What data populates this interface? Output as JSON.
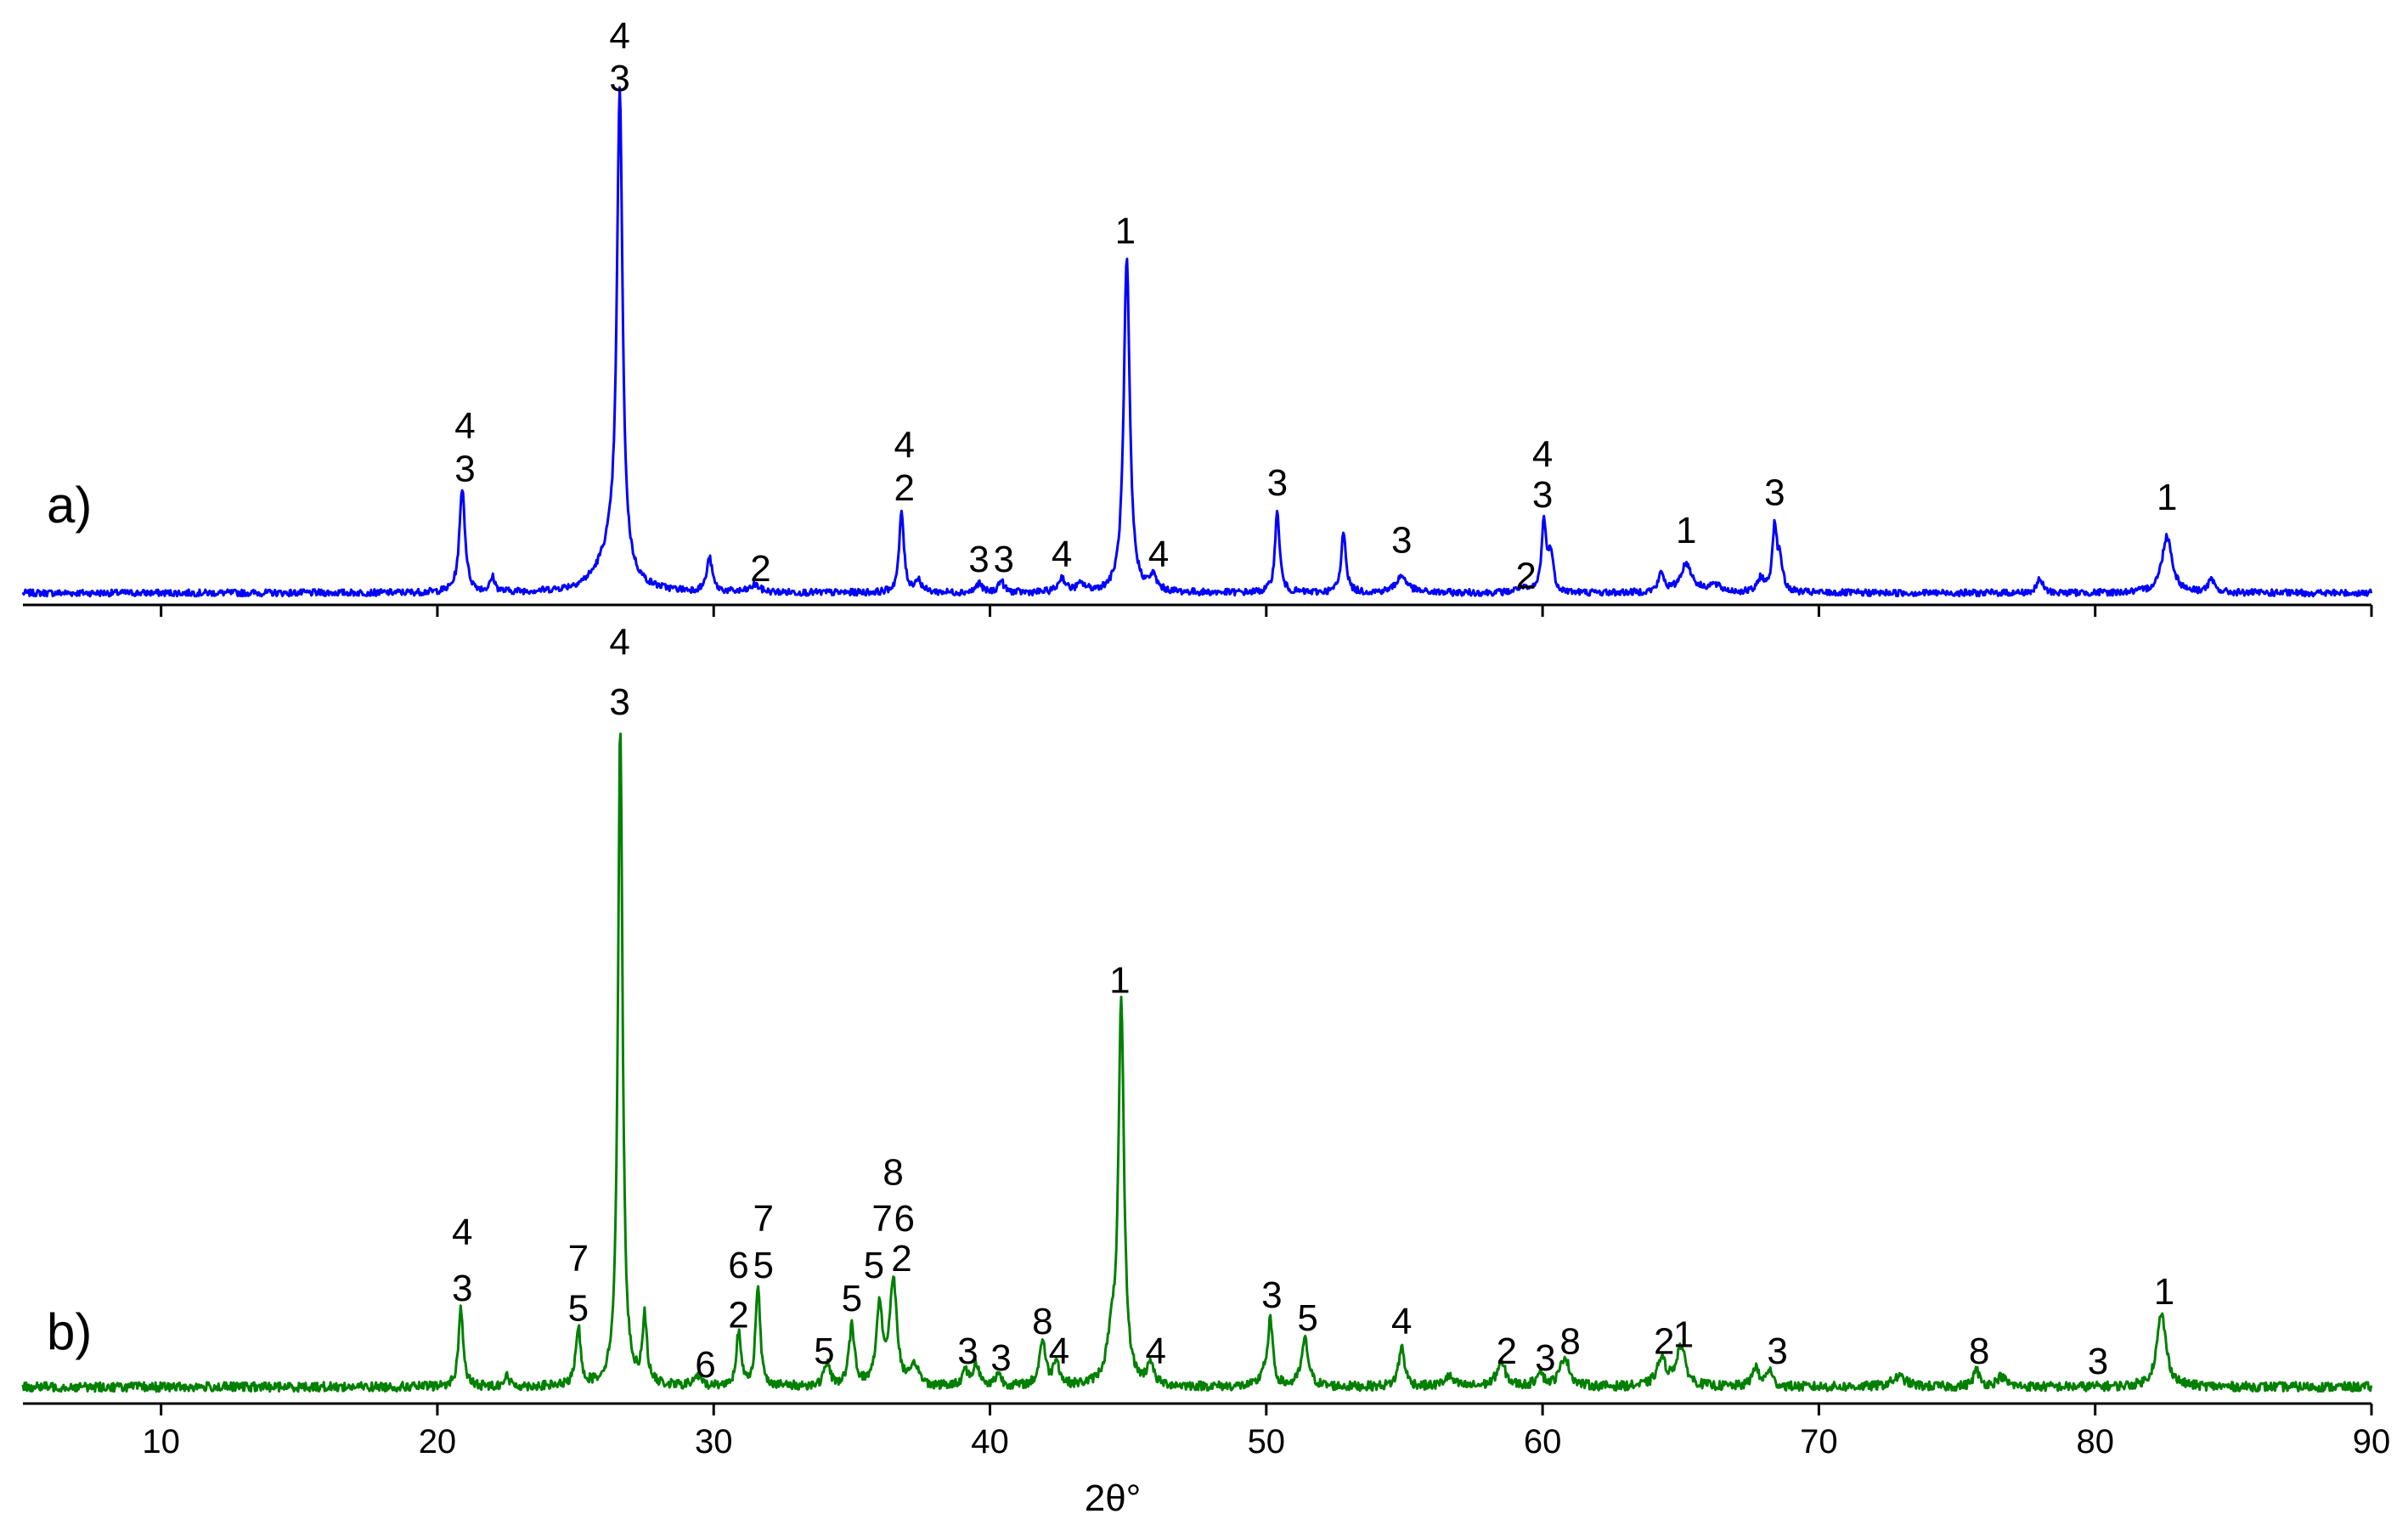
{
  "chart_data": {
    "type": "line",
    "xlabel": "2θ°",
    "xlim": [
      5,
      90
    ],
    "xticks": [
      10,
      20,
      30,
      40,
      50,
      60,
      70,
      80,
      90
    ],
    "grid": false,
    "panels": [
      {
        "label": "a)",
        "color": "#0000ff",
        "baseline": 2.5,
        "peaks": [
          {
            "x": 20.9,
            "h": 22,
            "w": 0.12
          },
          {
            "x": 22.0,
            "h": 3,
            "w": 0.1
          },
          {
            "x": 26.6,
            "h": 100,
            "w": 0.12
          },
          {
            "x": 26.3,
            "h": 8,
            "w": 0.6
          },
          {
            "x": 29.85,
            "h": 7,
            "w": 0.12
          },
          {
            "x": 31.5,
            "h": 1.5,
            "w": 0.2
          },
          {
            "x": 36.8,
            "h": 17,
            "w": 0.1
          },
          {
            "x": 37.4,
            "h": 2.5,
            "w": 0.15
          },
          {
            "x": 39.6,
            "h": 2,
            "w": 0.12
          },
          {
            "x": 40.4,
            "h": 2.5,
            "w": 0.12
          },
          {
            "x": 42.6,
            "h": 3,
            "w": 0.15
          },
          {
            "x": 43.3,
            "h": 1.5,
            "w": 0.2
          },
          {
            "x": 44.95,
            "h": 70,
            "w": 0.13
          },
          {
            "x": 45.9,
            "h": 3,
            "w": 0.15
          },
          {
            "x": 50.4,
            "h": 17,
            "w": 0.1
          },
          {
            "x": 52.8,
            "h": 13,
            "w": 0.1
          },
          {
            "x": 54.9,
            "h": 3.5,
            "w": 0.25
          },
          {
            "x": 59.2,
            "h": 1,
            "w": 0.2
          },
          {
            "x": 60.05,
            "h": 15,
            "w": 0.1
          },
          {
            "x": 60.3,
            "h": 8,
            "w": 0.1
          },
          {
            "x": 64.3,
            "h": 4,
            "w": 0.12
          },
          {
            "x": 65.2,
            "h": 6,
            "w": 0.25
          },
          {
            "x": 66.2,
            "h": 1.5,
            "w": 0.3
          },
          {
            "x": 67.9,
            "h": 3,
            "w": 0.12
          },
          {
            "x": 68.4,
            "h": 14,
            "w": 0.1
          },
          {
            "x": 68.6,
            "h": 6,
            "w": 0.1
          },
          {
            "x": 78.0,
            "h": 3,
            "w": 0.12
          },
          {
            "x": 82.6,
            "h": 12,
            "w": 0.22
          },
          {
            "x": 84.2,
            "h": 2.5,
            "w": 0.15
          }
        ],
        "annotations": [
          {
            "x": 21.0,
            "y": 35,
            "text": "4"
          },
          {
            "x": 21.0,
            "y": 26,
            "text": "3"
          },
          {
            "x": 26.6,
            "y": 117,
            "text": "4"
          },
          {
            "x": 26.6,
            "y": 108,
            "text": "3"
          },
          {
            "x": 31.7,
            "y": 5,
            "text": "2"
          },
          {
            "x": 36.9,
            "y": 31,
            "text": "4"
          },
          {
            "x": 36.9,
            "y": 22,
            "text": "2"
          },
          {
            "x": 39.6,
            "y": 7,
            "text": "3"
          },
          {
            "x": 40.5,
            "y": 7,
            "text": "3"
          },
          {
            "x": 42.6,
            "y": 8,
            "text": "4"
          },
          {
            "x": 46.1,
            "y": 8,
            "text": "4"
          },
          {
            "x": 44.9,
            "y": 76,
            "text": "1"
          },
          {
            "x": 50.4,
            "y": 23,
            "text": "3"
          },
          {
            "x": 54.9,
            "y": 11,
            "text": "3"
          },
          {
            "x": 59.4,
            "y": 3.5,
            "text": "2"
          },
          {
            "x": 60.0,
            "y": 29,
            "text": "4"
          },
          {
            "x": 60.0,
            "y": 20.5,
            "text": "3"
          },
          {
            "x": 65.2,
            "y": 13,
            "text": "1"
          },
          {
            "x": 68.4,
            "y": 21,
            "text": "3"
          },
          {
            "x": 82.6,
            "y": 20,
            "text": "1"
          }
        ]
      },
      {
        "label": "b)",
        "color": "#008000",
        "baseline": 2.5,
        "peaks": [
          {
            "x": 20.85,
            "h": 12,
            "w": 0.1
          },
          {
            "x": 22.5,
            "h": 1.5,
            "w": 0.12
          },
          {
            "x": 25.1,
            "h": 9,
            "w": 0.1
          },
          {
            "x": 26.62,
            "h": 100,
            "w": 0.1
          },
          {
            "x": 27.5,
            "h": 10,
            "w": 0.1
          },
          {
            "x": 29.4,
            "h": 1.5,
            "w": 0.15
          },
          {
            "x": 30.9,
            "h": 8,
            "w": 0.1
          },
          {
            "x": 31.6,
            "h": 15,
            "w": 0.1
          },
          {
            "x": 34.1,
            "h": 3.5,
            "w": 0.12
          },
          {
            "x": 35.0,
            "h": 9,
            "w": 0.12
          },
          {
            "x": 36.0,
            "h": 12,
            "w": 0.13
          },
          {
            "x": 36.5,
            "h": 16,
            "w": 0.15
          },
          {
            "x": 37.3,
            "h": 3,
            "w": 0.15
          },
          {
            "x": 39.1,
            "h": 2.5,
            "w": 0.12
          },
          {
            "x": 39.5,
            "h": 3.5,
            "w": 0.12
          },
          {
            "x": 40.3,
            "h": 2,
            "w": 0.12
          },
          {
            "x": 41.9,
            "h": 7,
            "w": 0.13
          },
          {
            "x": 42.4,
            "h": 4,
            "w": 0.12
          },
          {
            "x": 44.75,
            "h": 57,
            "w": 0.12
          },
          {
            "x": 44.4,
            "h": 6,
            "w": 0.2
          },
          {
            "x": 45.8,
            "h": 3.5,
            "w": 0.12
          },
          {
            "x": 49.9,
            "h": 2,
            "w": 0.12
          },
          {
            "x": 50.15,
            "h": 10,
            "w": 0.1
          },
          {
            "x": 51.4,
            "h": 7,
            "w": 0.15
          },
          {
            "x": 54.9,
            "h": 6,
            "w": 0.13
          },
          {
            "x": 56.6,
            "h": 1.5,
            "w": 0.2
          },
          {
            "x": 58.5,
            "h": 3.5,
            "w": 0.2
          },
          {
            "x": 59.9,
            "h": 2.5,
            "w": 0.13
          },
          {
            "x": 60.8,
            "h": 4.5,
            "w": 0.2
          },
          {
            "x": 64.3,
            "h": 4,
            "w": 0.2
          },
          {
            "x": 65.0,
            "h": 6,
            "w": 0.2
          },
          {
            "x": 67.7,
            "h": 3,
            "w": 0.13
          },
          {
            "x": 68.2,
            "h": 2.5,
            "w": 0.13
          },
          {
            "x": 72.9,
            "h": 1.5,
            "w": 0.3
          },
          {
            "x": 75.7,
            "h": 2.5,
            "w": 0.13
          },
          {
            "x": 76.6,
            "h": 1.5,
            "w": 0.2
          },
          {
            "x": 82.4,
            "h": 11,
            "w": 0.2
          }
        ],
        "annotations": [
          {
            "x": 20.9,
            "y": 24,
            "text": "4"
          },
          {
            "x": 20.9,
            "y": 15.5,
            "text": "3"
          },
          {
            "x": 25.1,
            "y": 20,
            "text": "7"
          },
          {
            "x": 25.1,
            "y": 12.5,
            "text": "5"
          },
          {
            "x": 26.6,
            "y": 113,
            "text": "4"
          },
          {
            "x": 26.6,
            "y": 104,
            "text": "3"
          },
          {
            "x": 29.7,
            "y": 4,
            "text": "6"
          },
          {
            "x": 30.9,
            "y": 19,
            "text": "6"
          },
          {
            "x": 30.9,
            "y": 11.5,
            "text": "2"
          },
          {
            "x": 31.8,
            "y": 26,
            "text": "7"
          },
          {
            "x": 31.8,
            "y": 19,
            "text": "5"
          },
          {
            "x": 34.0,
            "y": 6,
            "text": "5"
          },
          {
            "x": 35.0,
            "y": 14,
            "text": "5"
          },
          {
            "x": 35.8,
            "y": 19,
            "text": "5"
          },
          {
            "x": 36.1,
            "y": 26,
            "text": "7"
          },
          {
            "x": 36.9,
            "y": 26,
            "text": "6"
          },
          {
            "x": 36.5,
            "y": 33,
            "text": "8"
          },
          {
            "x": 36.8,
            "y": 20,
            "text": "2"
          },
          {
            "x": 39.2,
            "y": 6,
            "text": "3"
          },
          {
            "x": 40.4,
            "y": 5,
            "text": "3"
          },
          {
            "x": 41.9,
            "y": 10.5,
            "text": "8"
          },
          {
            "x": 42.5,
            "y": 6,
            "text": "4"
          },
          {
            "x": 44.7,
            "y": 62,
            "text": "1"
          },
          {
            "x": 46.0,
            "y": 6,
            "text": "4"
          },
          {
            "x": 50.2,
            "y": 14.5,
            "text": "3"
          },
          {
            "x": 51.5,
            "y": 11,
            "text": "5"
          },
          {
            "x": 54.9,
            "y": 10.5,
            "text": "4"
          },
          {
            "x": 58.7,
            "y": 6,
            "text": "2"
          },
          {
            "x": 60.1,
            "y": 5,
            "text": "3"
          },
          {
            "x": 61.0,
            "y": 7.5,
            "text": "8"
          },
          {
            "x": 64.4,
            "y": 7.5,
            "text": "2"
          },
          {
            "x": 65.1,
            "y": 8.5,
            "text": "1"
          },
          {
            "x": 68.5,
            "y": 6,
            "text": "3"
          },
          {
            "x": 75.8,
            "y": 6,
            "text": "8"
          },
          {
            "x": 80.1,
            "y": 4.5,
            "text": "3"
          },
          {
            "x": 82.5,
            "y": 15,
            "text": "1"
          }
        ]
      }
    ]
  }
}
